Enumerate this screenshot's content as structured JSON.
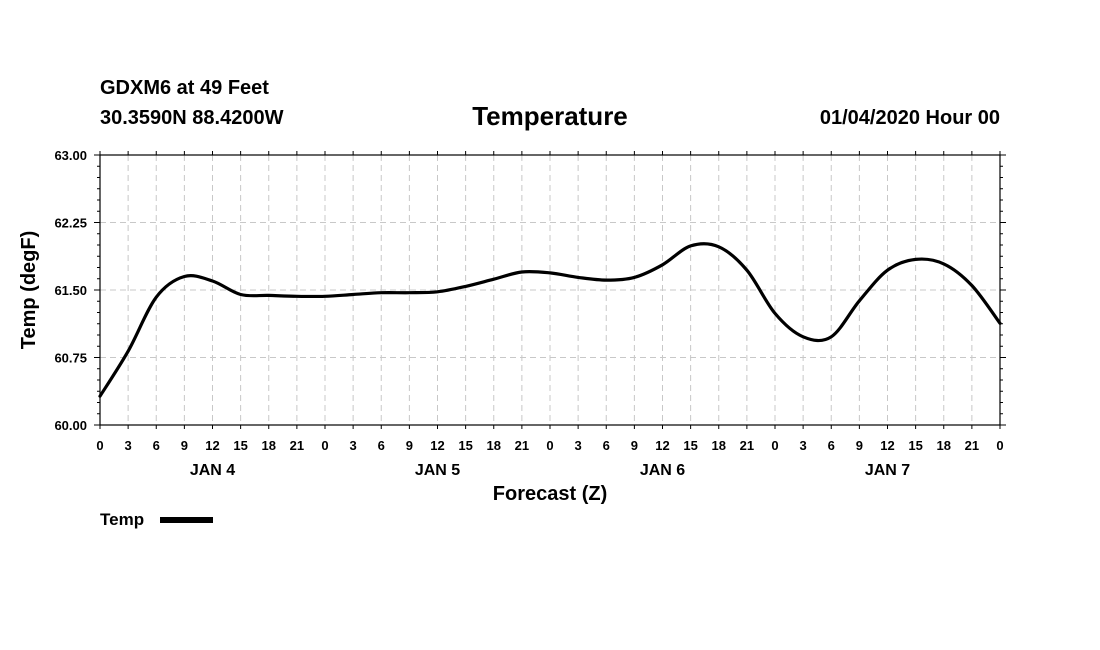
{
  "header": {
    "station": "GDXM6 at 49 Feet",
    "coords": "30.3590N 88.4200W",
    "title": "Temperature",
    "datetime": "01/04/2020 Hour 00"
  },
  "chart_data": {
    "type": "line",
    "title": "Temperature",
    "xlabel": "Forecast (Z)",
    "ylabel": "Temp (degF)",
    "ylim": [
      60.0,
      63.0
    ],
    "xlim": [
      0,
      96
    ],
    "y_ticks": [
      "60.00",
      "60.75",
      "61.50",
      "62.25",
      "63.00"
    ],
    "x_tick_labels": [
      "0",
      "3",
      "6",
      "9",
      "12",
      "15",
      "18",
      "21",
      "0",
      "3",
      "6",
      "9",
      "12",
      "15",
      "18",
      "21",
      "0",
      "3",
      "6",
      "9",
      "12",
      "15",
      "18",
      "21",
      "0",
      "3",
      "6",
      "9",
      "12",
      "15",
      "18",
      "21",
      "0"
    ],
    "day_labels": [
      {
        "label": "JAN 4",
        "hour": 12
      },
      {
        "label": "JAN 5",
        "hour": 36
      },
      {
        "label": "JAN 6",
        "hour": 60
      },
      {
        "label": "JAN 7",
        "hour": 84
      }
    ],
    "grid": true,
    "legend_position": "bottom-left",
    "series": [
      {
        "name": "Temp",
        "color": "#000000",
        "x": [
          0,
          3,
          6,
          9,
          12,
          15,
          18,
          21,
          24,
          27,
          30,
          33,
          36,
          39,
          42,
          45,
          48,
          51,
          54,
          57,
          60,
          63,
          66,
          69,
          72,
          75,
          78,
          81,
          84,
          87,
          90,
          93,
          96
        ],
        "values": [
          60.32,
          60.82,
          61.42,
          61.65,
          61.6,
          61.45,
          61.44,
          61.43,
          61.43,
          61.45,
          61.47,
          61.47,
          61.48,
          61.54,
          61.62,
          61.7,
          61.69,
          61.64,
          61.61,
          61.64,
          61.78,
          61.99,
          61.98,
          61.72,
          61.24,
          60.98,
          60.98,
          61.38,
          61.72,
          61.84,
          61.79,
          61.55,
          61.13
        ]
      }
    ]
  }
}
